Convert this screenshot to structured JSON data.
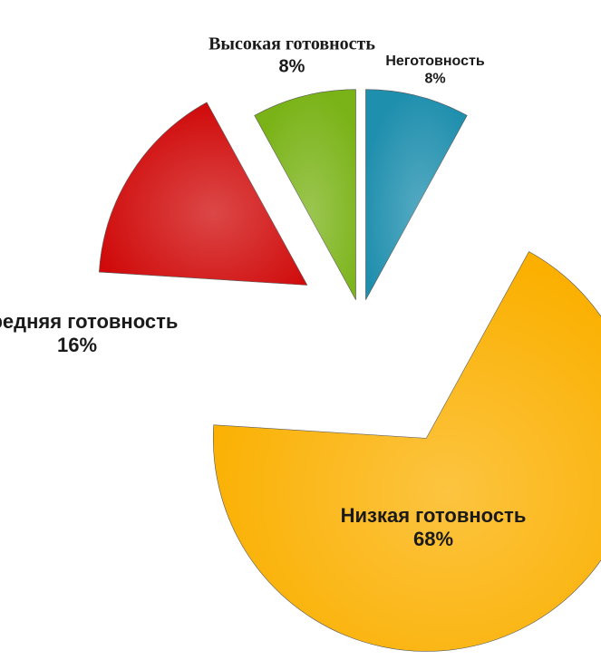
{
  "chart_data": {
    "type": "pie",
    "categories": [
      "Неготовность",
      "Низкая готовность",
      "Средняя готовность",
      "Высокая готовность"
    ],
    "values": [
      8,
      68,
      16,
      8
    ],
    "value_labels": [
      "8%",
      "68%",
      "16%",
      "8%"
    ],
    "colors": [
      "#1f8fae",
      "#fbb000",
      "#d00a0a",
      "#7ab317"
    ]
  }
}
